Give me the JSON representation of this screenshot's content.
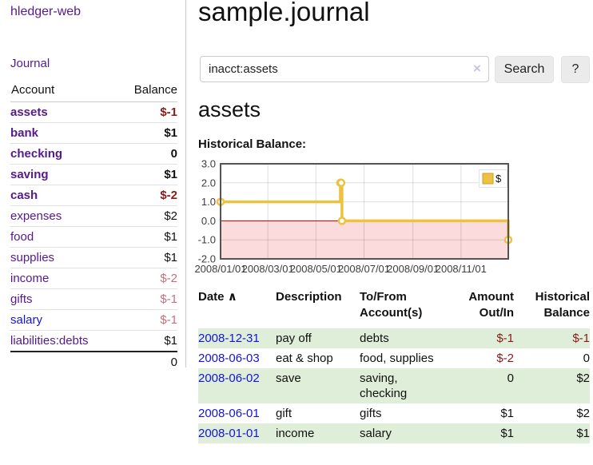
{
  "app": {
    "title": "hledger-web",
    "nav_journal": "Journal"
  },
  "sidebar": {
    "header": {
      "account": "Account",
      "balance": "Balance"
    },
    "rows": [
      {
        "label": "assets",
        "balance": "$-1",
        "level": 1,
        "bold": true,
        "balance_class": "neg-strong"
      },
      {
        "label": "bank",
        "balance": "$1",
        "level": 2,
        "bold": true,
        "balance_class": ""
      },
      {
        "label": "checking",
        "balance": "0",
        "level": 3,
        "bold": true,
        "balance_class": ""
      },
      {
        "label": "saving",
        "balance": "$1",
        "level": 3,
        "bold": true,
        "balance_class": ""
      },
      {
        "label": "cash",
        "balance": "$-2",
        "level": 2,
        "bold": true,
        "balance_class": "neg-strong"
      },
      {
        "label": "expenses",
        "balance": "$2",
        "level": 1,
        "bold": false,
        "balance_class": ""
      },
      {
        "label": "food",
        "balance": "$1",
        "level": 2,
        "bold": false,
        "balance_class": ""
      },
      {
        "label": "supplies",
        "balance": "$1",
        "level": 2,
        "bold": false,
        "balance_class": ""
      },
      {
        "label": "income",
        "balance": "$-2",
        "level": 1,
        "bold": false,
        "balance_class": "neg-soft"
      },
      {
        "label": "gifts",
        "balance": "$-1",
        "level": 2,
        "bold": false,
        "balance_class": "neg-soft"
      },
      {
        "label": "salary",
        "balance": "$-1",
        "level": 2,
        "bold": false,
        "balance_class": "neg-soft",
        "link_class": "blue"
      },
      {
        "label": "liabilities:debts",
        "balance": "$1",
        "level": 1,
        "bold": false,
        "balance_class": ""
      }
    ],
    "total": "0"
  },
  "main": {
    "title": "sample.journal",
    "search": {
      "value": "inacct:assets",
      "clear_icon": "×",
      "button": "Search",
      "help": "?"
    },
    "account_heading": "assets",
    "chart_label": "Historical Balance:"
  },
  "chart_data": {
    "type": "line",
    "title": "Historical Balance:",
    "steps": true,
    "series": [
      {
        "name": "$",
        "points": [
          [
            "2008-01-01",
            1
          ],
          [
            "2008-06-01",
            2
          ],
          [
            "2008-06-02",
            2
          ],
          [
            "2008-06-03",
            0
          ],
          [
            "2008-12-31",
            -1
          ]
        ]
      }
    ],
    "x_range": [
      "2008-01-01",
      "2008-12-31"
    ],
    "ylim": [
      -2,
      3
    ],
    "y_ticks": [
      3,
      2,
      1,
      0,
      -1,
      -2
    ],
    "y_tick_labels": [
      "3.0",
      "2.0",
      "1.0",
      "0.0",
      "-1.0",
      "-2.0"
    ],
    "x_ticks": [
      "2008/01/01",
      "2008/03/01",
      "2008/05/01",
      "2008/07/01",
      "2008/09/01",
      "2008/11/01"
    ],
    "legend_position": "top-right",
    "grid": true,
    "colors": {
      "line": "#edc240",
      "marker_fill": "#ffffff",
      "neg_bg": "#fbdbdb",
      "zero_line": "#aa0000",
      "border": "#545454",
      "grid": "rgba(0,0,0,0.13)",
      "legend_border": "#e3e3e3",
      "legend_swatch_border": "#c8a02b",
      "tick_text": "#3d3d3d"
    }
  },
  "register": {
    "columns": [
      {
        "label": "Date",
        "sort_indicator": "∧"
      },
      {
        "label": "Description"
      },
      {
        "label": "To/From Account(s)"
      },
      {
        "label": "Amount Out/In"
      },
      {
        "label": "Historical Balance"
      }
    ],
    "rows": [
      {
        "date": "2008-12-31",
        "description": "pay off",
        "accounts": "debts",
        "amount": "$-1",
        "amount_neg": true,
        "balance": "$-1",
        "balance_neg": true
      },
      {
        "date": "2008-06-03",
        "description": "eat & shop",
        "accounts": "food, supplies",
        "amount": "$-2",
        "amount_neg": true,
        "balance": "0",
        "balance_neg": false
      },
      {
        "date": "2008-06-02",
        "description": "save",
        "accounts": "saving, checking",
        "amount": "0",
        "amount_neg": false,
        "balance": "$2",
        "balance_neg": false
      },
      {
        "date": "2008-06-01",
        "description": "gift",
        "accounts": "gifts",
        "amount": "$1",
        "amount_neg": false,
        "balance": "$2",
        "balance_neg": false
      },
      {
        "date": "2008-01-01",
        "description": "income",
        "accounts": "salary",
        "amount": "$1",
        "amount_neg": false,
        "balance": "$1",
        "balance_neg": false
      }
    ]
  },
  "ui_colors": {
    "link_purple": "#551a8b",
    "link_blue": "#1414dd",
    "negative_strong": "#8b1a1a",
    "negative_soft": "#c1707e",
    "row_stripe_green": "#dfeed9",
    "button_bg": "#ebebeb"
  }
}
